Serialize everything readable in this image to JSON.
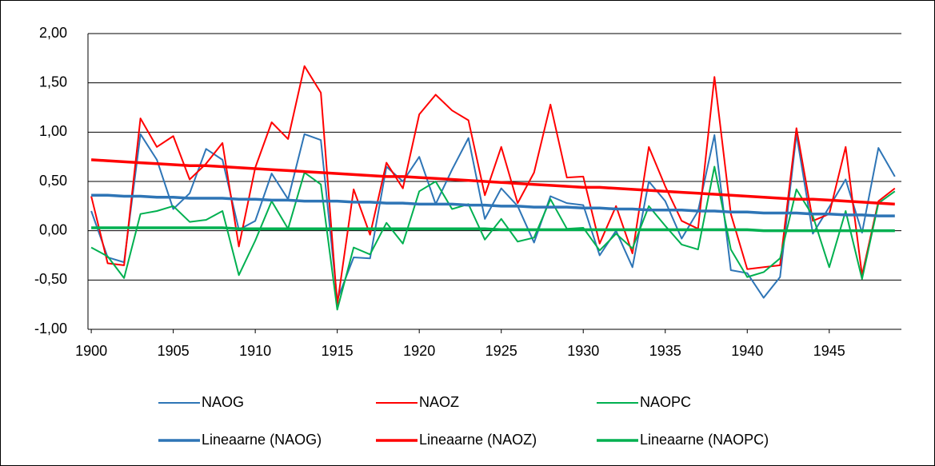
{
  "chart_data": {
    "type": "line",
    "x": [
      1900,
      1901,
      1902,
      1903,
      1904,
      1905,
      1906,
      1907,
      1908,
      1909,
      1910,
      1911,
      1912,
      1913,
      1914,
      1915,
      1916,
      1917,
      1918,
      1919,
      1920,
      1921,
      1922,
      1923,
      1924,
      1925,
      1926,
      1927,
      1928,
      1929,
      1930,
      1931,
      1932,
      1933,
      1934,
      1935,
      1936,
      1937,
      1938,
      1939,
      1940,
      1941,
      1942,
      1943,
      1944,
      1945,
      1946,
      1947,
      1948,
      1949
    ],
    "xlim": [
      1899.8,
      1949.4
    ],
    "xticks": [
      1900,
      1905,
      1910,
      1915,
      1920,
      1925,
      1930,
      1935,
      1940,
      1945
    ],
    "ylim": [
      -1,
      2
    ],
    "yticks": [
      {
        "value": -1,
        "label": "-1,00"
      },
      {
        "value": -0.5,
        "label": "-0,50"
      },
      {
        "value": 0,
        "label": "0,00"
      },
      {
        "value": 0.5,
        "label": "0,50"
      },
      {
        "value": 1,
        "label": "1,00"
      },
      {
        "value": 1.5,
        "label": "1,50"
      },
      {
        "value": 2,
        "label": "2,00"
      }
    ],
    "grid": true,
    "legend": "bottom",
    "series": [
      {
        "name": "NAOG",
        "color": "#2e75b6",
        "line_width": 2,
        "values": [
          0.2,
          -0.27,
          -0.32,
          0.98,
          0.72,
          0.22,
          0.38,
          0.83,
          0.72,
          0.01,
          0.1,
          0.58,
          0.32,
          0.98,
          0.92,
          -0.7,
          -0.27,
          -0.28,
          0.65,
          0.5,
          0.75,
          0.27,
          0.62,
          0.94,
          0.12,
          0.43,
          0.25,
          -0.12,
          0.35,
          0.28,
          0.26,
          -0.25,
          0.0,
          -0.37,
          0.5,
          0.3,
          -0.08,
          0.2,
          0.97,
          -0.4,
          -0.43,
          -0.68,
          -0.47,
          0.98,
          -0.03,
          0.24,
          0.52,
          -0.02,
          0.84,
          0.55
        ]
      },
      {
        "name": "NAOZ",
        "color": "#ff0000",
        "line_width": 2,
        "values": [
          0.35,
          -0.33,
          -0.35,
          1.14,
          0.85,
          0.96,
          0.52,
          0.68,
          0.89,
          -0.16,
          0.64,
          1.1,
          0.93,
          1.67,
          1.4,
          -0.75,
          0.42,
          -0.04,
          0.69,
          0.43,
          1.18,
          1.38,
          1.22,
          1.12,
          0.36,
          0.85,
          0.28,
          0.59,
          1.28,
          0.54,
          0.55,
          -0.13,
          0.25,
          -0.23,
          0.85,
          0.45,
          0.1,
          0.02,
          1.56,
          0.17,
          -0.39,
          -0.37,
          -0.35,
          1.04,
          0.1,
          0.17,
          0.85,
          -0.45,
          0.3,
          0.43
        ]
      },
      {
        "name": "NAOPC",
        "color": "#00b050",
        "line_width": 2,
        "values": [
          -0.17,
          -0.26,
          -0.48,
          0.17,
          0.2,
          0.25,
          0.09,
          0.11,
          0.2,
          -0.45,
          -0.1,
          0.3,
          0.02,
          0.59,
          0.47,
          -0.8,
          -0.17,
          -0.24,
          0.08,
          -0.13,
          0.4,
          0.5,
          0.22,
          0.27,
          -0.09,
          0.12,
          -0.11,
          -0.07,
          0.32,
          0.02,
          0.03,
          -0.2,
          -0.03,
          -0.18,
          0.25,
          0.05,
          -0.14,
          -0.19,
          0.65,
          -0.19,
          -0.47,
          -0.42,
          -0.28,
          0.42,
          0.15,
          -0.37,
          0.2,
          -0.49,
          0.28,
          0.4
        ]
      },
      {
        "name": "Lineaarne (NAOG)",
        "color": "#2e75b6",
        "line_width": 3.5,
        "values": [
          0.36,
          0.36,
          0.35,
          0.35,
          0.34,
          0.34,
          0.33,
          0.33,
          0.33,
          0.32,
          0.32,
          0.31,
          0.31,
          0.3,
          0.3,
          0.3,
          0.29,
          0.29,
          0.28,
          0.28,
          0.27,
          0.27,
          0.27,
          0.26,
          0.26,
          0.25,
          0.25,
          0.24,
          0.24,
          0.24,
          0.23,
          0.23,
          0.22,
          0.22,
          0.21,
          0.21,
          0.21,
          0.2,
          0.2,
          0.19,
          0.19,
          0.18,
          0.18,
          0.18,
          0.17,
          0.17,
          0.16,
          0.16,
          0.15,
          0.15
        ]
      },
      {
        "name": "Lineaarne (NAOZ)",
        "color": "#ff0000",
        "line_width": 3.5,
        "values": [
          0.72,
          0.71,
          0.7,
          0.69,
          0.68,
          0.67,
          0.66,
          0.66,
          0.65,
          0.64,
          0.63,
          0.62,
          0.61,
          0.6,
          0.59,
          0.58,
          0.57,
          0.56,
          0.55,
          0.55,
          0.54,
          0.53,
          0.52,
          0.51,
          0.5,
          0.49,
          0.48,
          0.47,
          0.46,
          0.45,
          0.44,
          0.44,
          0.43,
          0.42,
          0.41,
          0.4,
          0.39,
          0.38,
          0.37,
          0.36,
          0.35,
          0.34,
          0.33,
          0.32,
          0.32,
          0.31,
          0.3,
          0.29,
          0.28,
          0.27
        ]
      },
      {
        "name": "Lineaarne (NAOPC)",
        "color": "#00b050",
        "line_width": 3.5,
        "values": [
          0.03,
          0.03,
          0.03,
          0.03,
          0.03,
          0.03,
          0.03,
          0.03,
          0.03,
          0.02,
          0.02,
          0.02,
          0.02,
          0.02,
          0.02,
          0.02,
          0.02,
          0.02,
          0.02,
          0.02,
          0.02,
          0.02,
          0.02,
          0.02,
          0.02,
          0.01,
          0.01,
          0.01,
          0.01,
          0.01,
          0.01,
          0.01,
          0.01,
          0.01,
          0.01,
          0.01,
          0.01,
          0.01,
          0.01,
          0.01,
          0.01,
          0,
          0,
          0,
          0,
          0,
          0,
          0,
          0,
          0
        ]
      }
    ]
  }
}
